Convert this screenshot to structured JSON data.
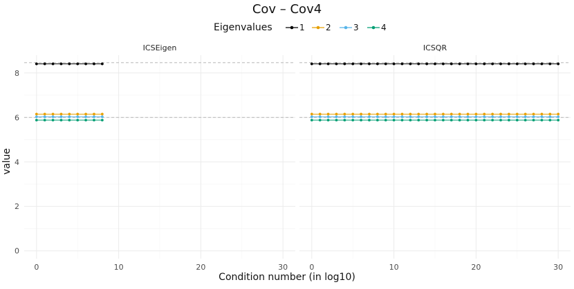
{
  "chart_data": {
    "type": "line",
    "title": "Cov – Cov4",
    "xlabel": "Condition number (in log10)",
    "ylabel": "value",
    "legend": {
      "title": "Eigenvalues",
      "position": "top",
      "entries": [
        "1",
        "2",
        "3",
        "4"
      ]
    },
    "colors": {
      "1": "#000000",
      "2": "#E69F00",
      "3": "#56B4E9",
      "4": "#009E73",
      "reference_line": "#bdbdbd",
      "grid_major": "#ebebeb",
      "grid_minor": "#f4f4f4"
    },
    "xlim": [
      -1.5,
      31.5
    ],
    "ylim": [
      -0.35,
      8.8
    ],
    "x_ticks": [
      0,
      10,
      20,
      30
    ],
    "y_ticks": [
      0,
      2,
      4,
      6,
      8
    ],
    "grid": true,
    "reference_lines_y": [
      8.4652,
      6.0
    ],
    "panels": [
      {
        "label": "ICSEigen",
        "x": [
          0,
          1,
          2,
          3,
          4,
          5,
          6,
          7,
          8
        ],
        "series": [
          {
            "name": "1",
            "values": [
              8.41,
              8.41,
              8.41,
              8.41,
              8.41,
              8.41,
              8.41,
              8.41,
              8.41
            ]
          },
          {
            "name": "2",
            "values": [
              6.15,
              6.15,
              6.15,
              6.15,
              6.15,
              6.15,
              6.15,
              6.15,
              6.15
            ]
          },
          {
            "name": "3",
            "values": [
              6.03,
              6.03,
              6.03,
              6.03,
              6.03,
              6.03,
              6.03,
              6.03,
              6.03
            ]
          },
          {
            "name": "4",
            "values": [
              5.88,
              5.88,
              5.88,
              5.88,
              5.88,
              5.88,
              5.88,
              5.88,
              5.88
            ]
          }
        ]
      },
      {
        "label": "ICSQR",
        "x": [
          0,
          1,
          2,
          3,
          4,
          5,
          6,
          7,
          8,
          9,
          10,
          11,
          12,
          13,
          14,
          15,
          16,
          17,
          18,
          19,
          20,
          21,
          22,
          23,
          24,
          25,
          26,
          27,
          28,
          29,
          30
        ],
        "series": [
          {
            "name": "1",
            "values": [
              8.41,
              8.41,
              8.41,
              8.41,
              8.41,
              8.41,
              8.41,
              8.41,
              8.41,
              8.41,
              8.41,
              8.41,
              8.41,
              8.41,
              8.41,
              8.41,
              8.41,
              8.41,
              8.41,
              8.41,
              8.41,
              8.41,
              8.41,
              8.41,
              8.41,
              8.41,
              8.41,
              8.41,
              8.41,
              8.41,
              8.41
            ]
          },
          {
            "name": "2",
            "values": [
              6.15,
              6.15,
              6.15,
              6.15,
              6.15,
              6.15,
              6.15,
              6.15,
              6.15,
              6.15,
              6.15,
              6.15,
              6.15,
              6.15,
              6.15,
              6.15,
              6.15,
              6.15,
              6.15,
              6.15,
              6.15,
              6.15,
              6.15,
              6.15,
              6.15,
              6.15,
              6.15,
              6.15,
              6.15,
              6.15,
              6.15
            ]
          },
          {
            "name": "3",
            "values": [
              6.03,
              6.03,
              6.03,
              6.03,
              6.03,
              6.03,
              6.03,
              6.03,
              6.03,
              6.03,
              6.03,
              6.03,
              6.03,
              6.03,
              6.03,
              6.03,
              6.03,
              6.03,
              6.03,
              6.03,
              6.03,
              6.03,
              6.03,
              6.03,
              6.03,
              6.03,
              6.03,
              6.03,
              6.03,
              6.03,
              6.03
            ]
          },
          {
            "name": "4",
            "values": [
              5.88,
              5.88,
              5.88,
              5.88,
              5.88,
              5.88,
              5.88,
              5.88,
              5.88,
              5.88,
              5.88,
              5.88,
              5.88,
              5.88,
              5.88,
              5.88,
              5.88,
              5.88,
              5.88,
              5.88,
              5.88,
              5.88,
              5.88,
              5.88,
              5.88,
              5.88,
              5.88,
              5.88,
              5.88,
              5.88,
              5.88
            ]
          }
        ]
      }
    ]
  }
}
